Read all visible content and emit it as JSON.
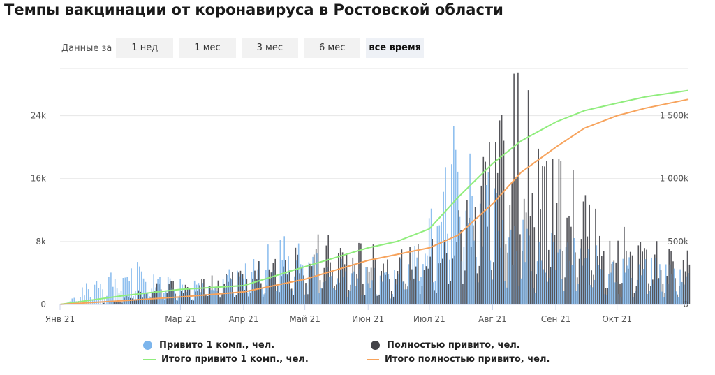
{
  "title": "Темпы вакцинации от коронавируса в Ростовской области",
  "range_selector": {
    "label": "Данные за",
    "options": [
      "1 нед",
      "1 мес",
      "3 мес",
      "6 мес",
      "все время"
    ],
    "selected": "все время"
  },
  "colors": {
    "first_dose_bars": "#7cb5ec",
    "full_bars": "#434348",
    "first_dose_line": "#90ed7d",
    "full_line": "#f7a35c",
    "grid": "#e6e6e6"
  },
  "chart_data": {
    "type": "bar",
    "x_ticks": [
      "Янв 21",
      "Мар 21",
      "Апр 21",
      "Май 21",
      "Июн 21",
      "Июл 21",
      "Авг 21",
      "Сен 21",
      "Окт 21"
    ],
    "x_range": [
      "2021-01-01",
      "2021-11-05"
    ],
    "y_left": {
      "ticks": [
        "0",
        "8k",
        "16k",
        "24k"
      ],
      "range": [
        0,
        30000
      ]
    },
    "y_right": {
      "ticks": [
        "0",
        "500k",
        "1 000k",
        "1 500k"
      ],
      "range": [
        0,
        1875000
      ]
    },
    "grid": true,
    "legend_position": "bottom",
    "series": [
      {
        "name": "Привито 1 комп., чел.",
        "kind": "bar",
        "axis": "left",
        "shape": [
          [
            "2021-01-05",
            300
          ],
          [
            "2021-01-20",
            3000
          ],
          [
            "2021-02-10",
            4000
          ],
          [
            "2021-03-01",
            2500
          ],
          [
            "2021-04-01",
            3500
          ],
          [
            "2021-04-20",
            6500
          ],
          [
            "2021-05-10",
            4500
          ],
          [
            "2021-06-01",
            3500
          ],
          [
            "2021-06-20",
            4200
          ],
          [
            "2021-07-01",
            11000
          ],
          [
            "2021-07-10",
            19000
          ],
          [
            "2021-07-20",
            16000
          ],
          [
            "2021-08-01",
            11000
          ],
          [
            "2021-08-20",
            7500
          ],
          [
            "2021-09-10",
            6000
          ],
          [
            "2021-10-01",
            4500
          ],
          [
            "2021-11-05",
            3800
          ]
        ]
      },
      {
        "name": "Полностью привито, чел.",
        "kind": "bar",
        "axis": "left",
        "shape": [
          [
            "2021-01-20",
            0
          ],
          [
            "2021-02-10",
            1500
          ],
          [
            "2021-03-01",
            2500
          ],
          [
            "2021-04-01",
            3000
          ],
          [
            "2021-05-01",
            6500
          ],
          [
            "2021-05-20",
            6000
          ],
          [
            "2021-06-10",
            5000
          ],
          [
            "2021-06-25",
            5500
          ],
          [
            "2021-07-10",
            6500
          ],
          [
            "2021-07-25",
            14000
          ],
          [
            "2021-08-05",
            19000
          ],
          [
            "2021-08-15",
            21500
          ],
          [
            "2021-08-25",
            18000
          ],
          [
            "2021-09-10",
            12000
          ],
          [
            "2021-09-25",
            8500
          ],
          [
            "2021-10-10",
            6000
          ],
          [
            "2021-11-05",
            5000
          ]
        ]
      },
      {
        "name": "Итого привито 1 комп., чел.",
        "kind": "line",
        "axis": "right",
        "points": [
          [
            "2021-01-01",
            0
          ],
          [
            "2021-02-01",
            70000
          ],
          [
            "2021-03-01",
            120000
          ],
          [
            "2021-04-01",
            150000
          ],
          [
            "2021-05-01",
            300000
          ],
          [
            "2021-06-01",
            450000
          ],
          [
            "2021-06-15",
            500000
          ],
          [
            "2021-07-01",
            600000
          ],
          [
            "2021-07-15",
            850000
          ],
          [
            "2021-08-01",
            1120000
          ],
          [
            "2021-08-15",
            1300000
          ],
          [
            "2021-09-01",
            1450000
          ],
          [
            "2021-09-15",
            1540000
          ],
          [
            "2021-10-01",
            1600000
          ],
          [
            "2021-10-15",
            1650000
          ],
          [
            "2021-11-05",
            1700000
          ]
        ]
      },
      {
        "name": "Итого полностью привито, чел.",
        "kind": "line",
        "axis": "right",
        "points": [
          [
            "2021-01-01",
            0
          ],
          [
            "2021-02-01",
            30000
          ],
          [
            "2021-03-01",
            60000
          ],
          [
            "2021-04-01",
            100000
          ],
          [
            "2021-05-01",
            200000
          ],
          [
            "2021-06-01",
            350000
          ],
          [
            "2021-07-01",
            450000
          ],
          [
            "2021-07-15",
            550000
          ],
          [
            "2021-08-01",
            800000
          ],
          [
            "2021-08-15",
            1050000
          ],
          [
            "2021-09-01",
            1250000
          ],
          [
            "2021-09-15",
            1400000
          ],
          [
            "2021-10-01",
            1500000
          ],
          [
            "2021-10-15",
            1560000
          ],
          [
            "2021-11-05",
            1630000
          ]
        ]
      }
    ]
  }
}
